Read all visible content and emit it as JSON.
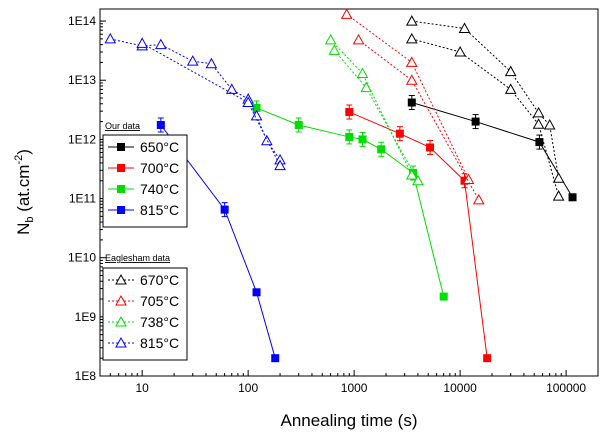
{
  "chart_data": {
    "type": "scatter",
    "xlabel": "Annealing time (s)",
    "ylabel_main": "N",
    "ylabel_sub": "b",
    "ylabel_rest": " (at.cm",
    "ylabel_sup": "-2",
    "ylabel_close": ")",
    "x_scale": "log",
    "y_scale": "log",
    "xlim": [
      4,
      200000
    ],
    "ylim": [
      100000000,
      160000000000000
    ],
    "x_ticks": [
      {
        "value": 10,
        "label": "10"
      },
      {
        "value": 100,
        "label": "100"
      },
      {
        "value": 1000,
        "label": "1000"
      },
      {
        "value": 10000,
        "label": "10000"
      },
      {
        "value": 100000,
        "label": "100000"
      }
    ],
    "y_ticks": [
      {
        "value": 100000000,
        "label": "1E8"
      },
      {
        "value": 1000000000,
        "label": "1E9"
      },
      {
        "value": 10000000000,
        "label": "1E10"
      },
      {
        "value": 100000000000,
        "label": "1E11"
      },
      {
        "value": 1000000000000,
        "label": "1E12"
      },
      {
        "value": 10000000000000,
        "label": "1E13"
      },
      {
        "value": 100000000000000,
        "label": "1E14"
      }
    ],
    "grid": false,
    "legend_groups": [
      {
        "title": "Our data",
        "placement": "left-middle"
      },
      {
        "title": "Eaglesham data",
        "placement": "bottom-left"
      }
    ],
    "series": [
      {
        "name": "650°C",
        "group": 0,
        "color": "#000000",
        "marker": "filled-square",
        "line": "solid",
        "x": [
          3500,
          14000,
          56000,
          115000
        ],
        "y": [
          4200000000000,
          2000000000000,
          900000000000,
          105000000000
        ]
      },
      {
        "name": "700°C",
        "group": 0,
        "color": "#ff0000",
        "marker": "filled-square",
        "line": "solid",
        "x": [
          900,
          2700,
          5200,
          11000,
          18000
        ],
        "y": [
          2900000000000,
          1250000000000,
          730000000000,
          200000000000,
          200000000
        ]
      },
      {
        "name": "740°C",
        "group": 0,
        "color": "#00dd00",
        "marker": "filled-square",
        "line": "solid",
        "x": [
          120,
          300,
          900,
          1200,
          1800,
          3600,
          7000
        ],
        "y": [
          3400000000000,
          1750000000000,
          1100000000000,
          1000000000000,
          680000000000,
          270000000000,
          2200000000
        ]
      },
      {
        "name": "815°C",
        "group": 0,
        "color": "#0000ff",
        "marker": "filled-square",
        "line": "solid",
        "x": [
          15,
          60,
          120,
          180
        ],
        "y": [
          1750000000000,
          65000000000,
          2600000000,
          200000000
        ]
      },
      {
        "name": "670°C",
        "group": 1,
        "color": "#000000",
        "marker": "open-triangle",
        "line": "dotted",
        "x": [
          3500,
          11000,
          30000,
          55000,
          70000,
          85000
        ],
        "y": [
          100000000000000,
          75000000000000,
          14000000000000,
          2800000000000,
          1750000000000,
          220000000000
        ]
      },
      {
        "name": "670°C",
        "group": 1,
        "color": "#000000",
        "marker": "open-triangle",
        "line": "dotted",
        "legend": false,
        "x": [
          3500,
          10000,
          30000,
          55000,
          85000
        ],
        "y": [
          50000000000000,
          30000000000000,
          7000000000000,
          1800000000000,
          110000000000
        ]
      },
      {
        "name": "705°C",
        "group": 1,
        "color": "#ff0000",
        "marker": "open-triangle",
        "line": "dotted",
        "x": [
          850,
          3500,
          12000
        ],
        "y": [
          130000000000000,
          20000000000000,
          210000000000
        ]
      },
      {
        "name": "705°C",
        "group": 1,
        "color": "#ff0000",
        "marker": "open-triangle",
        "line": "dotted",
        "legend": false,
        "x": [
          1100,
          3500,
          15000
        ],
        "y": [
          48000000000000,
          10000000000000,
          95000000000
        ]
      },
      {
        "name": "738°C",
        "group": 1,
        "color": "#00dd00",
        "marker": "open-triangle",
        "line": "dotted",
        "x": [
          600,
          1200,
          3500
        ],
        "y": [
          48000000000000,
          13000000000000,
          250000000000
        ]
      },
      {
        "name": "738°C",
        "group": 1,
        "color": "#00dd00",
        "marker": "open-triangle",
        "line": "dotted",
        "legend": false,
        "x": [
          650,
          1300,
          4000
        ],
        "y": [
          32000000000000,
          7500000000000,
          200000000000
        ]
      },
      {
        "name": "815°C",
        "group": 1,
        "color": "#0000ff",
        "marker": "open-triangle",
        "line": "dotted",
        "x": [
          5,
          10,
          15,
          30,
          45,
          70,
          100,
          120,
          150,
          200
        ],
        "y": [
          50000000000000,
          38000000000000,
          40000000000000,
          21000000000000,
          19000000000000,
          7000000000000,
          4800000000000,
          2500000000000,
          950000000000,
          450000000000
        ]
      },
      {
        "name": "815°C",
        "group": 1,
        "color": "#0000ff",
        "marker": "open-triangle",
        "line": "dotted",
        "legend": false,
        "x": [
          10,
          100,
          200
        ],
        "y": [
          42000000000000,
          4200000000000,
          360000000000
        ]
      }
    ]
  }
}
